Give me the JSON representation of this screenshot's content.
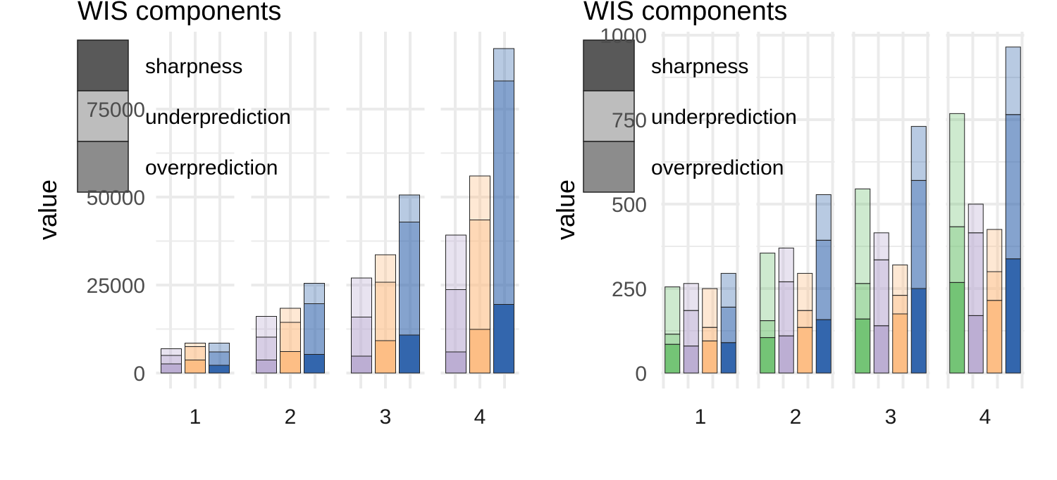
{
  "legend": {
    "title": "WIS components",
    "items": [
      {
        "label": "sharpness",
        "color": "#595959"
      },
      {
        "label": "underprediction",
        "color": "#bdbdbd"
      },
      {
        "label": "overprediction",
        "color": "#8c8c8c"
      }
    ]
  },
  "model_colors": {
    "green": "#74c476",
    "purple": "#bcaed3",
    "orange": "#fdbe85",
    "blue": "#3366ad"
  },
  "chart_data": [
    {
      "type": "bar",
      "stacked": true,
      "ylabel": "value",
      "ylim": [
        0,
        95000
      ],
      "yticks": [
        0,
        25000,
        50000,
        75000
      ],
      "ytick_labels": [
        "0",
        "25000",
        "50000",
        "75000"
      ],
      "categories": [
        "1",
        "2",
        "3",
        "4"
      ],
      "series_colors": [
        "purple",
        "orange",
        "blue"
      ],
      "bars": [
        [
          [
            2600,
            2400,
            1900
          ],
          [
            3700,
            3800,
            1000
          ],
          [
            2200,
            3800,
            2500
          ]
        ],
        [
          [
            3700,
            6500,
            5900
          ],
          [
            6100,
            8300,
            4000
          ],
          [
            5300,
            14400,
            5800
          ]
        ],
        [
          [
            4800,
            11100,
            11100
          ],
          [
            9200,
            16600,
            7800
          ],
          [
            10800,
            32100,
            7700
          ]
        ],
        [
          [
            6000,
            17700,
            15500
          ],
          [
            12400,
            31100,
            12500
          ],
          [
            19500,
            63500,
            9200
          ]
        ]
      ]
    },
    {
      "type": "bar",
      "stacked": true,
      "ylabel": "value",
      "ylim": [
        0,
        1000
      ],
      "yticks": [
        0,
        250,
        500,
        750,
        1000
      ],
      "ytick_labels": [
        "0",
        "250",
        "500",
        "750",
        "1000"
      ],
      "categories": [
        "1",
        "2",
        "3",
        "4"
      ],
      "series_colors": [
        "green",
        "purple",
        "orange",
        "blue"
      ],
      "bars": [
        [
          [
            85,
            30,
            140
          ],
          [
            80,
            105,
            80
          ],
          [
            95,
            40,
            115
          ],
          [
            90,
            105,
            100
          ]
        ],
        [
          [
            105,
            50,
            200
          ],
          [
            110,
            160,
            100
          ],
          [
            135,
            50,
            110
          ],
          [
            158,
            235,
            135
          ]
        ],
        [
          [
            160,
            105,
            280
          ],
          [
            140,
            195,
            80
          ],
          [
            175,
            55,
            90
          ],
          [
            250,
            320,
            160
          ]
        ],
        [
          [
            268,
            165,
            335
          ],
          [
            170,
            245,
            85
          ],
          [
            215,
            85,
            125
          ],
          [
            338,
            427,
            200
          ]
        ]
      ]
    }
  ]
}
